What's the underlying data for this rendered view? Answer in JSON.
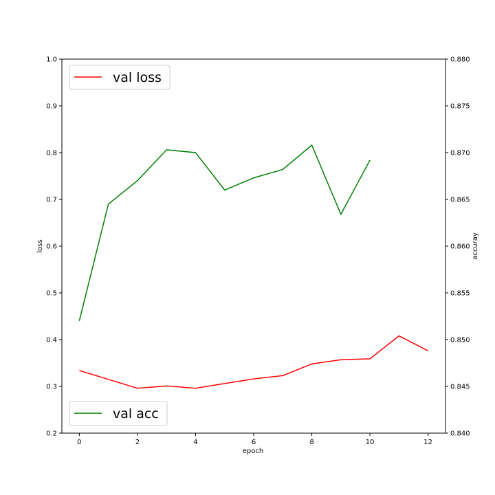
{
  "chart_data": {
    "type": "line",
    "title": "",
    "xlabel": "epoch",
    "ylabel_left": "loss",
    "ylabel_right": "accuray",
    "xlim": [
      -0.6,
      12.6
    ],
    "ylim_left": [
      0.2,
      1.0
    ],
    "ylim_right": [
      0.84,
      0.88
    ],
    "xticks": [
      0,
      2,
      4,
      6,
      8,
      10,
      12
    ],
    "yticks_left": [
      "0.2",
      "0.3",
      "0.4",
      "0.5",
      "0.6",
      "0.7",
      "0.8",
      "0.9",
      "1.0"
    ],
    "yticks_right": [
      "0.840",
      "0.845",
      "0.850",
      "0.855",
      "0.860",
      "0.865",
      "0.870",
      "0.875",
      "0.880"
    ],
    "grid": false,
    "series": [
      {
        "name": "val loss",
        "axis": "left",
        "color": "#ff0000",
        "x": [
          0,
          1,
          2,
          3,
          4,
          5,
          6,
          7,
          8,
          9,
          10,
          11,
          12
        ],
        "values": [
          0.334,
          0.315,
          0.296,
          0.301,
          0.296,
          0.306,
          0.316,
          0.323,
          0.348,
          0.357,
          0.359,
          0.408,
          0.376
        ],
        "legend_position": "upper-left"
      },
      {
        "name": "val acc",
        "axis": "right",
        "color": "#008000",
        "x": [
          0,
          1,
          2,
          3,
          4,
          5,
          6,
          7,
          8,
          9,
          10
        ],
        "values": [
          0.852,
          0.8645,
          0.867,
          0.8703,
          0.87,
          0.866,
          0.8673,
          0.8682,
          0.8708,
          0.8634,
          0.8692
        ],
        "legend_position": "lower-left"
      }
    ]
  }
}
